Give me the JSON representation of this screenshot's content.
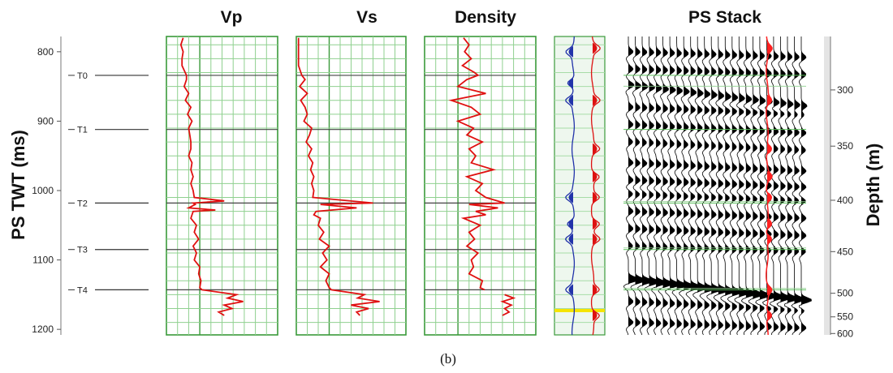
{
  "caption": "(b)",
  "chart_data": {
    "type": "line",
    "panels": [
      {
        "key": "vp",
        "title": "Vp"
      },
      {
        "key": "vs",
        "title": "Vs"
      },
      {
        "key": "density",
        "title": "Density"
      },
      {
        "key": "synthetic",
        "title": ""
      },
      {
        "key": "stack",
        "title": "PS Stack"
      }
    ],
    "left_axis": {
      "label": "PS TWT (ms)",
      "ticks": [
        800,
        900,
        1000,
        1100,
        1200
      ],
      "ylim": [
        778,
        1208
      ]
    },
    "right_axis": {
      "label": "Depth (m)",
      "ticks": [
        300,
        350,
        400,
        450,
        500,
        550,
        600
      ]
    },
    "horizons": [
      {
        "name": "T0",
        "twt": 834
      },
      {
        "name": "T1",
        "twt": 912
      },
      {
        "name": "T2",
        "twt": 1018
      },
      {
        "name": "T3",
        "twt": 1085
      },
      {
        "name": "T4",
        "twt": 1143
      }
    ],
    "highlight_twt": 1173,
    "logs": {
      "vp": {
        "xlim": [
          0,
          1
        ],
        "twt": [
          780,
          790,
          800,
          810,
          820,
          834,
          840,
          850,
          860,
          870,
          880,
          890,
          900,
          910,
          920,
          930,
          940,
          950,
          960,
          970,
          980,
          990,
          1000,
          1010,
          1015,
          1018,
          1020,
          1025,
          1028,
          1030,
          1040,
          1050,
          1060,
          1070,
          1080,
          1090,
          1100,
          1110,
          1120,
          1130,
          1140,
          1143,
          1150,
          1155,
          1160,
          1165,
          1170,
          1175,
          1180
        ],
        "values": [
          0.15,
          0.13,
          0.15,
          0.14,
          0.14,
          0.18,
          0.18,
          0.16,
          0.2,
          0.17,
          0.22,
          0.19,
          0.23,
          0.2,
          0.21,
          0.22,
          0.22,
          0.2,
          0.23,
          0.22,
          0.24,
          0.22,
          0.24,
          0.25,
          0.52,
          0.24,
          0.26,
          0.2,
          0.44,
          0.24,
          0.22,
          0.27,
          0.25,
          0.29,
          0.24,
          0.27,
          0.25,
          0.3,
          0.29,
          0.31,
          0.3,
          0.32,
          0.63,
          0.55,
          0.69,
          0.52,
          0.59,
          0.47,
          0.52
        ]
      },
      "vs": {
        "xlim": [
          0,
          1
        ],
        "twt": [
          780,
          800,
          820,
          834,
          840,
          850,
          860,
          870,
          880,
          890,
          900,
          910,
          920,
          930,
          940,
          950,
          960,
          970,
          980,
          990,
          1000,
          1010,
          1018,
          1020,
          1025,
          1030,
          1035,
          1040,
          1050,
          1060,
          1070,
          1080,
          1090,
          1100,
          1110,
          1120,
          1130,
          1140,
          1143,
          1150,
          1155,
          1160,
          1165,
          1170,
          1175,
          1180
        ],
        "values": [
          0.02,
          0.02,
          0.02,
          0.05,
          0.08,
          0.03,
          0.1,
          0.04,
          0.08,
          0.1,
          0.07,
          0.14,
          0.12,
          0.09,
          0.14,
          0.11,
          0.15,
          0.13,
          0.16,
          0.14,
          0.16,
          0.15,
          0.7,
          0.22,
          0.55,
          0.18,
          0.16,
          0.22,
          0.2,
          0.25,
          0.21,
          0.3,
          0.24,
          0.28,
          0.22,
          0.3,
          0.27,
          0.3,
          0.32,
          0.62,
          0.56,
          0.76,
          0.5,
          0.66,
          0.55,
          0.58
        ]
      },
      "density": {
        "xlim": [
          0,
          1
        ],
        "twt": [
          780,
          790,
          800,
          810,
          820,
          830,
          834,
          840,
          850,
          860,
          870,
          880,
          890,
          900,
          910,
          920,
          930,
          940,
          950,
          960,
          970,
          980,
          990,
          1000,
          1010,
          1018,
          1020,
          1025,
          1030,
          1035,
          1040,
          1050,
          1060,
          1070,
          1080,
          1090,
          1100,
          1110,
          1120,
          1130,
          1140,
          1143
        ],
        "values": [
          0.35,
          0.4,
          0.36,
          0.42,
          0.34,
          0.45,
          0.48,
          0.38,
          0.3,
          0.55,
          0.24,
          0.42,
          0.5,
          0.3,
          0.44,
          0.38,
          0.52,
          0.4,
          0.46,
          0.42,
          0.62,
          0.38,
          0.52,
          0.46,
          0.55,
          0.72,
          0.4,
          0.66,
          0.46,
          0.55,
          0.35,
          0.5,
          0.4,
          0.45,
          0.38,
          0.48,
          0.42,
          0.44,
          0.4,
          0.52,
          0.5,
          0.54
        ],
        "twt2": [
          1150,
          1155,
          1160,
          1165,
          1170,
          1175,
          1180
        ],
        "values2": [
          0.72,
          0.8,
          0.7,
          0.78,
          0.72,
          0.76,
          0.7
        ]
      }
    },
    "synthetic": {
      "traces": [
        {
          "color": "#2233aa",
          "peaks_twt": [
            800,
            845,
            870,
            1010,
            1048,
            1070,
            1143
          ],
          "polarity": -1
        },
        {
          "color": "#dd1111",
          "peaks_twt": [
            795,
            870,
            940,
            980,
            1010,
            1048,
            1070,
            1143,
            1180
          ],
          "polarity": 1
        }
      ]
    }
  }
}
